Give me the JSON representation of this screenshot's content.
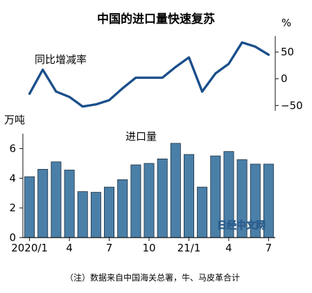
{
  "chart_data": [
    {
      "type": "line",
      "title": "中国的进口量快速复苏",
      "series_label": "同比增减率",
      "unit": "%",
      "y_ticks": [
        50,
        0,
        -50
      ],
      "ylim": [
        -60,
        80
      ],
      "x": [
        "2020/1",
        "2020/2",
        "2020/3",
        "2020/4",
        "2020/5",
        "2020/6",
        "2020/7",
        "2020/8",
        "2020/9",
        "2020/10",
        "2020/11",
        "2020/12",
        "2021/1",
        "2021/2",
        "2021/3",
        "2021/4",
        "2021/5",
        "2021/6",
        "2021/7"
      ],
      "values": [
        -28,
        17,
        -24,
        -34,
        -52,
        -48,
        -40,
        -18,
        2,
        2,
        2,
        22,
        40,
        -24,
        10,
        28,
        68,
        60,
        45
      ],
      "grid": false,
      "color": "#1a4f8b"
    },
    {
      "type": "bar",
      "series_label": "进口量",
      "unit": "万吨",
      "y_ticks": [
        0,
        2,
        4,
        6
      ],
      "ylim": [
        0,
        7
      ],
      "categories": [
        "2020/1",
        "2020/2",
        "2020/3",
        "2020/4",
        "2020/5",
        "2020/6",
        "2020/7",
        "2020/8",
        "2020/9",
        "2020/10",
        "2020/11",
        "2020/12",
        "2021/1",
        "2021/2",
        "2021/3",
        "2021/4",
        "2021/5",
        "2021/6",
        "2021/7"
      ],
      "values": [
        4.1,
        4.6,
        5.1,
        4.55,
        3.1,
        3.05,
        3.4,
        3.9,
        4.9,
        5.0,
        5.3,
        6.35,
        5.6,
        3.4,
        5.5,
        5.8,
        5.25,
        4.95,
        4.95
      ],
      "x_tick_labels": [
        {
          "index": 0,
          "label": "2020/1"
        },
        {
          "index": 3,
          "label": "4"
        },
        {
          "index": 6,
          "label": "7"
        },
        {
          "index": 9,
          "label": "10"
        },
        {
          "index": 12,
          "label": "21/1"
        },
        {
          "index": 15,
          "label": "4"
        },
        {
          "index": 18,
          "label": "7"
        }
      ],
      "grid": false,
      "bar_color": "#4a7fa8"
    }
  ],
  "note": "（注）数据来自中国海关总署，牛、马皮革合计",
  "watermark": "日经中文网"
}
